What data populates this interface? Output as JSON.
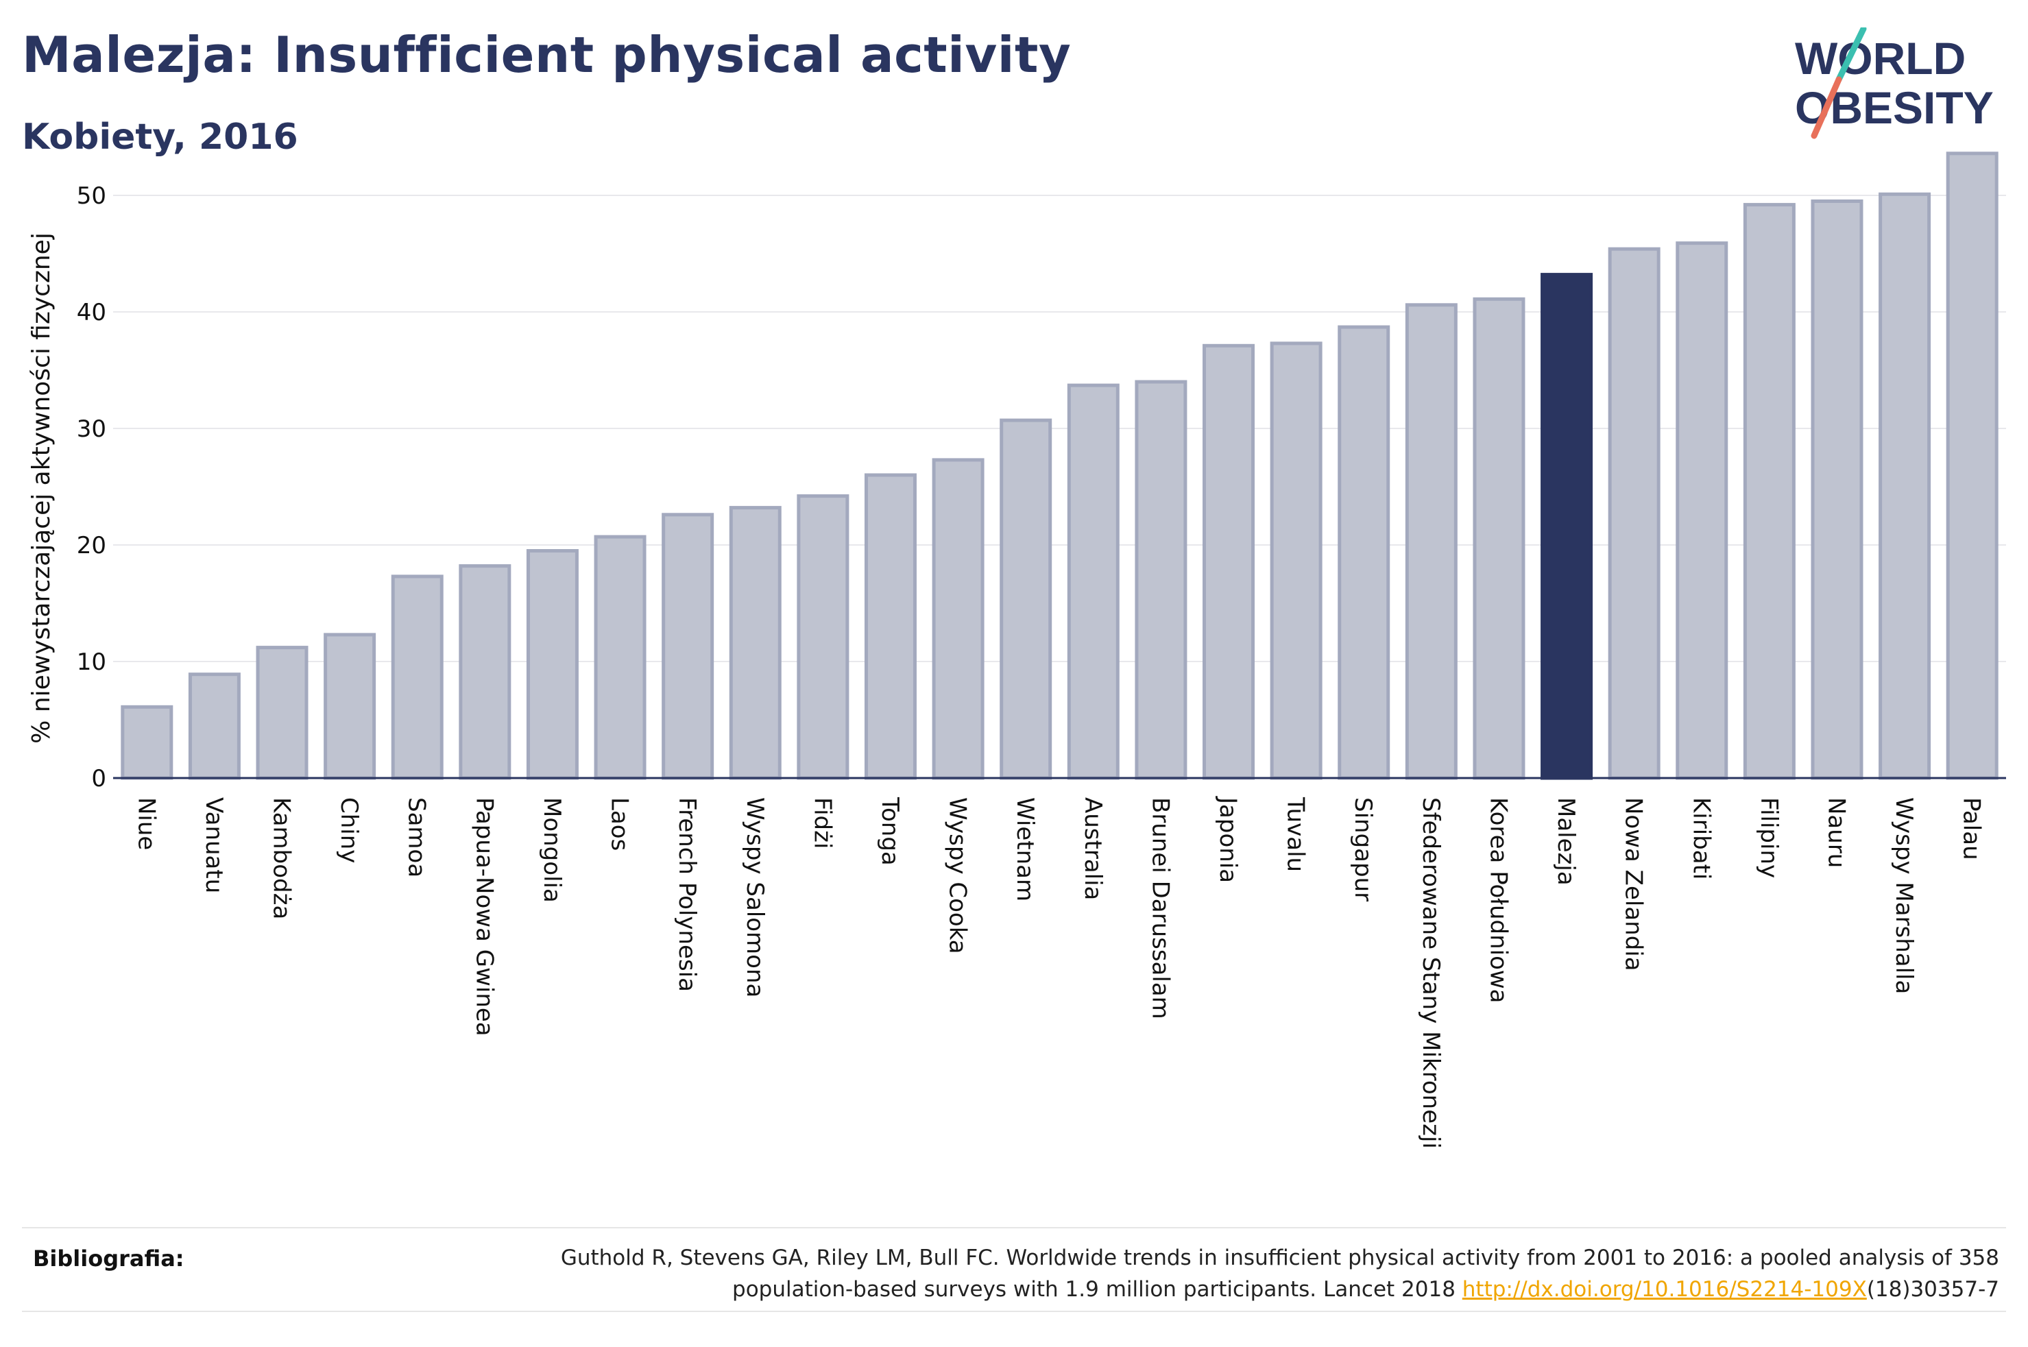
{
  "header": {
    "title": "Malezja: Insufficient physical activity",
    "subtitle": "Kobiety, 2016"
  },
  "logo": {
    "line1": "WORLD",
    "line2": "OBESITY",
    "colors": {
      "text": "#2a3560",
      "slash_teal": "#3bbfb0",
      "slash_coral": "#e8705a"
    }
  },
  "chart_data": {
    "type": "bar",
    "ylabel": "% niewystarczającej aktywności fizycznej",
    "xlabel": "",
    "ylim": [
      0,
      55
    ],
    "yticks": [
      0,
      10,
      20,
      30,
      40,
      50
    ],
    "grid": true,
    "highlight": "Malezja",
    "colors": {
      "bar": "#bfc3d0",
      "bar_edge": "#a3a9be",
      "highlight": "#2a3560",
      "grid": "#e8e8ec",
      "axis": "#2a3560"
    },
    "categories": [
      "Niue",
      "Vanuatu",
      "Kambodża",
      "Chiny",
      "Samoa",
      "Papua-Nowa Gwinea",
      "Mongolia",
      "Laos",
      "French Polynesia",
      "Wyspy Salomona",
      "Fidżi",
      "Tonga",
      "Wyspy Cooka",
      "Wietnam",
      "Australia",
      "Brunei Darussalam",
      "Japonia",
      "Tuvalu",
      "Singapur",
      "Sfederowane Stany Mikronezji",
      "Korea Południowa",
      "Malezja",
      "Nowa Zelandia",
      "Kiribati",
      "Filipiny",
      "Nauru",
      "Wyspy Marshalla",
      "Palau"
    ],
    "values": [
      6.1,
      8.9,
      11.2,
      12.3,
      17.3,
      18.2,
      19.5,
      20.7,
      22.6,
      23.2,
      24.2,
      26.0,
      27.3,
      30.7,
      33.7,
      34.0,
      37.1,
      37.3,
      38.7,
      40.6,
      41.1,
      43.2,
      45.4,
      45.9,
      49.2,
      49.5,
      50.1,
      53.6
    ]
  },
  "bibliography": {
    "label": "Bibliografia:",
    "line1": "Guthold R, Stevens GA, Riley LM, Bull FC. Worldwide trends in insufficient physical activity from 2001 to 2016: a pooled analysis of 358",
    "line2_pre": "population-based surveys with 1.9 million participants. Lancet 2018 ",
    "link": "http://dx.doi.org/10.1016/S2214-109X",
    "line2_post": "(18)30357-7"
  }
}
